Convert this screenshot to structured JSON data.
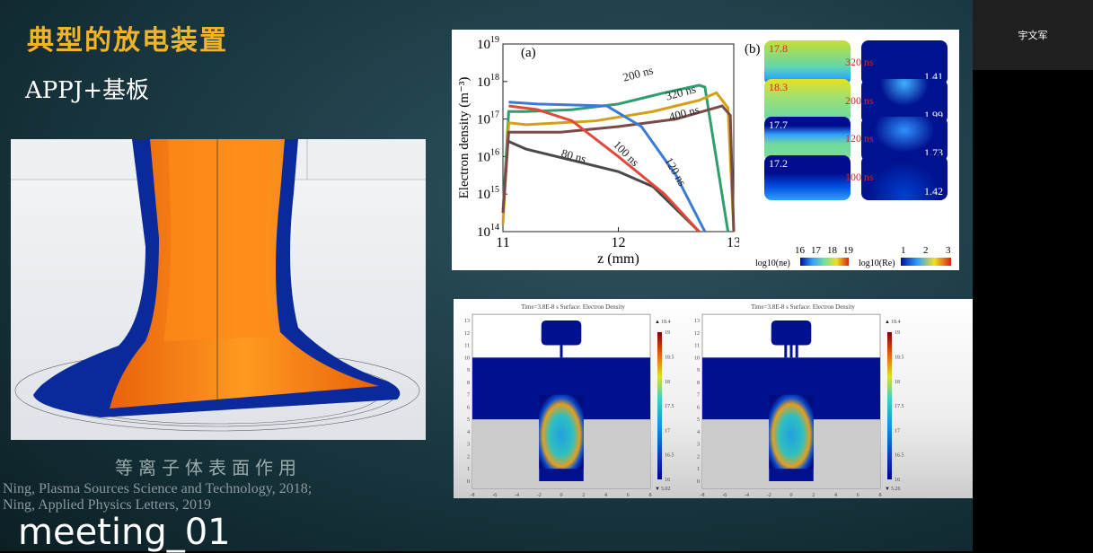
{
  "participant": {
    "name": "宇文军"
  },
  "slide": {
    "title": "典型的放电装置",
    "subtitle": "APPJ+基板",
    "caption": "等离子体表面作用",
    "references": [
      "Ning, Plasma Sources Science and Technology, 2018;",
      "Ning, Applied Physics Letters, 2019"
    ]
  },
  "overlay": {
    "meeting_name": "meeting_01"
  },
  "chart_data": [
    {
      "type": "line",
      "panel_label": "(a)",
      "xlabel": "z (mm)",
      "ylabel": "Electron density (m⁻³)",
      "yscale": "log",
      "xlim": [
        11,
        13
      ],
      "ylim": [
        100000000000000.0,
        1e+19
      ],
      "xticks": [
        "11",
        "12",
        "13"
      ],
      "yticks": [
        "10",
        "10",
        "10",
        "10",
        "10",
        "10"
      ],
      "ytick_exp": [
        "14",
        "15",
        "16",
        "17",
        "18",
        "19"
      ],
      "series": [
        {
          "name": "200 ns",
          "color": "#2e9e6e",
          "z": [
            11,
            11.05,
            11.2,
            11.6,
            12,
            12.4,
            12.7,
            12.75,
            12.95
          ],
          "log10_n": [
            14.5,
            17.2,
            17.2,
            17.25,
            17.4,
            17.7,
            17.9,
            17.85,
            14
          ]
        },
        {
          "name": "320 ns",
          "color": "#d4a017",
          "z": [
            11,
            11.05,
            11.2,
            11.8,
            12.3,
            12.7,
            12.85,
            12.95,
            13
          ],
          "log10_n": [
            14.2,
            16.9,
            16.85,
            16.95,
            17.2,
            17.5,
            17.7,
            17.3,
            14
          ]
        },
        {
          "name": "400 ns",
          "color": "#7a4a48",
          "z": [
            11,
            11.05,
            11.5,
            12,
            12.5,
            12.9,
            12.97,
            13
          ],
          "log10_n": [
            14.5,
            16.65,
            16.65,
            16.8,
            17.0,
            17.35,
            17.1,
            14
          ]
        },
        {
          "name": "80 ns",
          "color": "#4a4a4a",
          "z": [
            11.05,
            11.2,
            11.6,
            12,
            12.3,
            12.7
          ],
          "log10_n": [
            16.4,
            16.2,
            15.9,
            15.6,
            15.2,
            14
          ]
        },
        {
          "name": "100 ns",
          "color": "#e04a3a",
          "z": [
            11.05,
            11.3,
            11.6,
            12,
            12.4,
            12.7
          ],
          "log10_n": [
            17.35,
            17.25,
            16.95,
            16.0,
            15.0,
            14
          ]
        },
        {
          "name": "120 ns",
          "color": "#3a7bd5",
          "z": [
            11.05,
            11.3,
            11.9,
            12.2,
            12.5,
            12.75
          ],
          "log10_n": [
            17.45,
            17.4,
            17.35,
            16.8,
            15.5,
            14
          ]
        }
      ]
    },
    {
      "type": "heatmap",
      "panel_label": "(b)",
      "rows": [
        {
          "time": "320 ns",
          "ne_max": "17.8",
          "re_max": "1.41"
        },
        {
          "time": "200 ns",
          "ne_max": "18.3",
          "re_max": "1.99"
        },
        {
          "time": "120 ns",
          "ne_max": "17.7",
          "re_max": "1.73"
        },
        {
          "time": "100 ns",
          "ne_max": "17.2",
          "re_max": "1.42"
        }
      ],
      "colorbar_ne": {
        "label": "log10(ne)",
        "ticks": [
          "16",
          "17",
          "18",
          "19"
        ]
      },
      "colorbar_re": {
        "label": "log10(Re)",
        "ticks": [
          "1",
          "2",
          "3"
        ]
      }
    },
    {
      "type": "heatmap",
      "title": "Time=3.8E-8 s   Surface: Electron Density",
      "xticks": [
        "-8",
        "-6",
        "-4",
        "-2",
        "0",
        "2",
        "4",
        "6",
        "8"
      ],
      "yticks": [
        "0",
        "1",
        "2",
        "3",
        "4",
        "5",
        "6",
        "7",
        "8",
        "9",
        "10",
        "11",
        "12",
        "13"
      ],
      "colorbar_ticks": [
        "16",
        "16.5",
        "17",
        "17.5",
        "18",
        "18.5",
        "19"
      ],
      "max": "18.4",
      "min": "5.02"
    },
    {
      "type": "heatmap",
      "title": "Time=3.8E-8 s   Surface: Electron Density",
      "xticks": [
        "-8",
        "-6",
        "-4",
        "-2",
        "0",
        "2",
        "4",
        "6",
        "8"
      ],
      "yticks": [
        "0",
        "1",
        "2",
        "3",
        "4",
        "5",
        "6",
        "7",
        "8",
        "9",
        "10",
        "11",
        "12",
        "13"
      ],
      "colorbar_ticks": [
        "16",
        "16.5",
        "17",
        "17.5",
        "18",
        "18.5",
        "19"
      ],
      "max": "18.4",
      "min": "5.26"
    }
  ]
}
